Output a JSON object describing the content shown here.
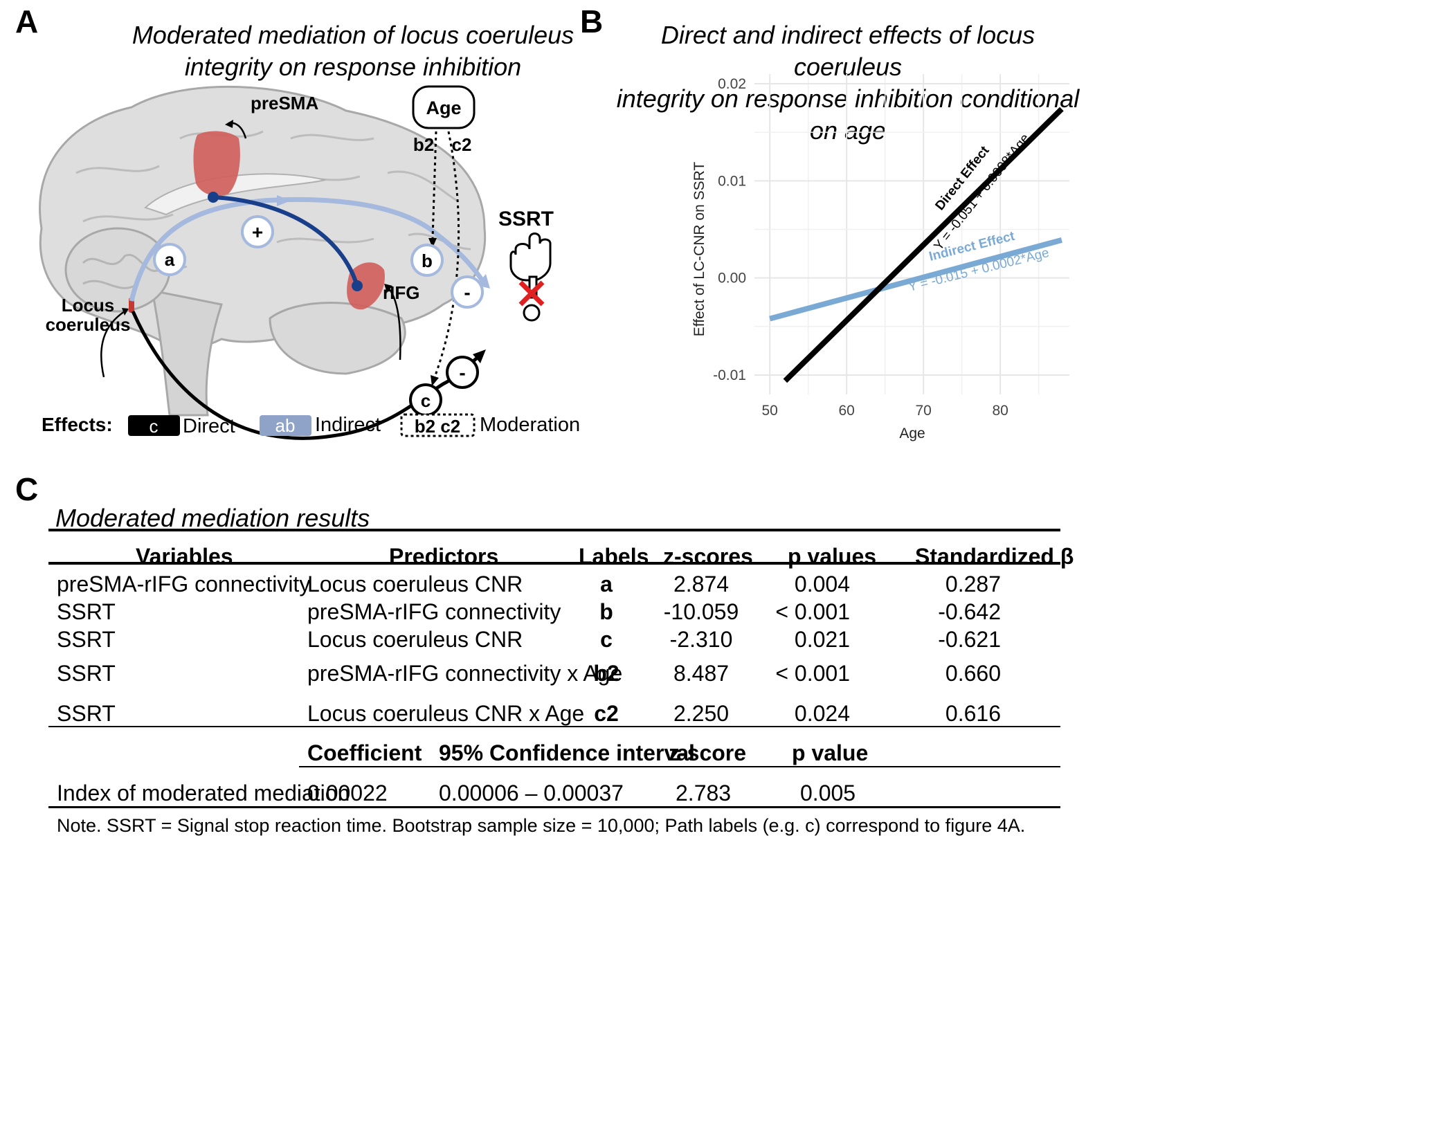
{
  "panelA": {
    "letter": "A",
    "title_line1": "Moderated mediation of locus coeruleus",
    "title_line2": "integrity on response inhibition",
    "labels": {
      "presma": "preSMA",
      "rifg": "rIFG",
      "lc_line1": "Locus",
      "lc_line2": "coeruleus",
      "age": "Age",
      "ssrt": "SSRT",
      "b2": "b2",
      "c2": "c2",
      "path_a": "a",
      "path_b": "b",
      "path_c": "c",
      "plus": "+",
      "minus": "-"
    },
    "legend": {
      "title": "Effects:",
      "direct_key": "c",
      "direct_label": "Direct",
      "indirect_key": "ab",
      "indirect_label": "Indirect",
      "moderation_key": "b2 c2",
      "moderation_label": "Moderation"
    },
    "colors": {
      "indirect": "#a5b8dd",
      "direct": "#000000",
      "region": "#d0605c",
      "connectivity": "#1a3f8a",
      "cross": "#e02020"
    }
  },
  "panelB": {
    "letter": "B",
    "title_line1": "Direct and indirect effects of locus coeruleus",
    "title_line2": "integrity on response inhibition conditional on age",
    "direct_label": "Direct Effect",
    "direct_eq": "Y = -0.051 + 0.0008*Age",
    "indirect_label": "Indirect Effect",
    "indirect_eq": "Y = -0.015 + 0.0002*Age"
  },
  "chart_data": {
    "type": "line",
    "xlabel": "Age",
    "ylabel": "Effect of LC-CNR on SSRT",
    "xlim": [
      48,
      89
    ],
    "ylim": [
      -0.012,
      0.021
    ],
    "xticks": [
      50,
      60,
      70,
      80
    ],
    "xtick_labels": [
      "50",
      "60",
      "70",
      "80"
    ],
    "yticks": [
      -0.01,
      0.0,
      0.01,
      0.02
    ],
    "ytick_labels": [
      "-0.01",
      "0.00",
      "0.01",
      "0.02"
    ],
    "grid": true,
    "series": [
      {
        "name": "Direct Effect",
        "color": "#000000",
        "x": [
          52,
          88
        ],
        "y": [
          -0.0106,
          0.0174
        ]
      },
      {
        "name": "Indirect Effect",
        "color": "#7aaad4",
        "x": [
          50,
          88
        ],
        "y": [
          -0.0042,
          0.0039
        ]
      }
    ]
  },
  "panelC": {
    "letter": "C",
    "title": "Moderated mediation results",
    "headers": [
      "Variables",
      "Predictors",
      "Labels",
      "z-scores",
      "p values",
      "Standardized β"
    ],
    "rows": [
      [
        "preSMA-rIFG connectivity",
        "Locus coeruleus CNR",
        "a",
        "2.874",
        "0.004",
        "0.287"
      ],
      [
        "SSRT",
        "preSMA-rIFG connectivity",
        "b",
        "-10.059",
        "< 0.001",
        "-0.642"
      ],
      [
        "SSRT",
        "Locus coeruleus CNR",
        "c",
        "-2.310",
        "0.021",
        "-0.621"
      ],
      [
        "SSRT",
        "preSMA-rIFG connectivity x Age",
        "b2",
        "8.487",
        "< 0.001",
        "0.660"
      ],
      [
        "SSRT",
        "Locus coeruleus CNR x Age",
        "c2",
        "2.250",
        "0.024",
        "0.616"
      ]
    ],
    "index_headers": [
      "Coefficient",
      "95% Confidence interval",
      "z-score",
      "p value"
    ],
    "index_row": [
      "Index of moderated mediation",
      "0.00022",
      "0.00006 – 0.00037",
      "2.783",
      "0.005"
    ],
    "note": "Note. SSRT = Signal stop reaction time. Bootstrap sample size = 10,000; Path labels (e.g. c) correspond to figure 4A."
  }
}
